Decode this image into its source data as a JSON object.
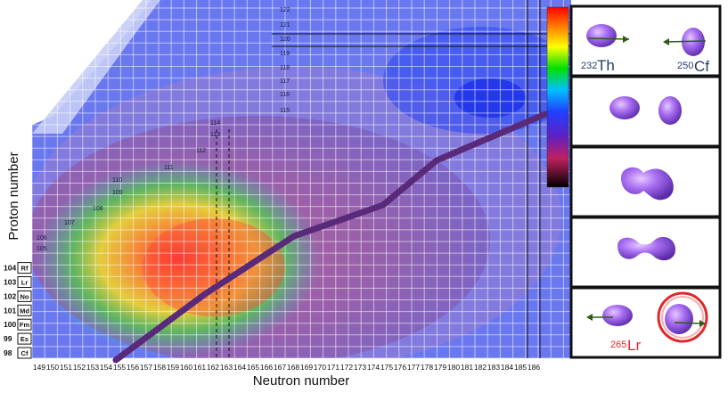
{
  "axes": {
    "xlabel": "Neutron number",
    "ylabel": "Proton number",
    "x_ticks": [
      "149",
      "150",
      "151",
      "152",
      "153",
      "154",
      "155",
      "156",
      "157",
      "158",
      "159",
      "160",
      "161",
      "162",
      "163",
      "164",
      "165",
      "166",
      "167",
      "168",
      "169",
      "170",
      "171",
      "172",
      "173",
      "174",
      "175",
      "176",
      "177",
      "178",
      "179",
      "180",
      "181",
      "182",
      "183",
      "184",
      "185",
      "186"
    ],
    "y_ticks": [
      "98",
      "99",
      "100",
      "101",
      "102",
      "103",
      "104"
    ]
  },
  "elements": [
    {
      "z": "98",
      "symbol": "Cf"
    },
    {
      "z": "99",
      "symbol": "Es"
    },
    {
      "z": "100",
      "symbol": "Fm"
    },
    {
      "z": "101",
      "symbol": "Md"
    },
    {
      "z": "102",
      "symbol": "No"
    },
    {
      "z": "103",
      "symbol": "Lr"
    },
    {
      "z": "104",
      "symbol": "Rf"
    }
  ],
  "inner_z_labels": [
    "105",
    "106",
    "107",
    "108",
    "109",
    "110",
    "111",
    "112",
    "113",
    "114",
    "115",
    "116",
    "117",
    "118",
    "119",
    "120",
    "121",
    "122"
  ],
  "reactants": {
    "left_mass": "232",
    "left_symbol": "Th",
    "right_mass": "250",
    "right_symbol": "Cf",
    "product_mass": "265",
    "product_symbol": "Lr"
  },
  "colors": {
    "trajectory": "#5a2a7a",
    "nucleus": "#9b59e8",
    "arrow": "#2f5a1a",
    "highlight_circle": "#e0282c",
    "product_label": "#e0282c",
    "reactant_label": "#2a3a66",
    "frame": "#111111"
  },
  "panels": [
    "approach",
    "contact",
    "neck",
    "scission",
    "separation"
  ]
}
